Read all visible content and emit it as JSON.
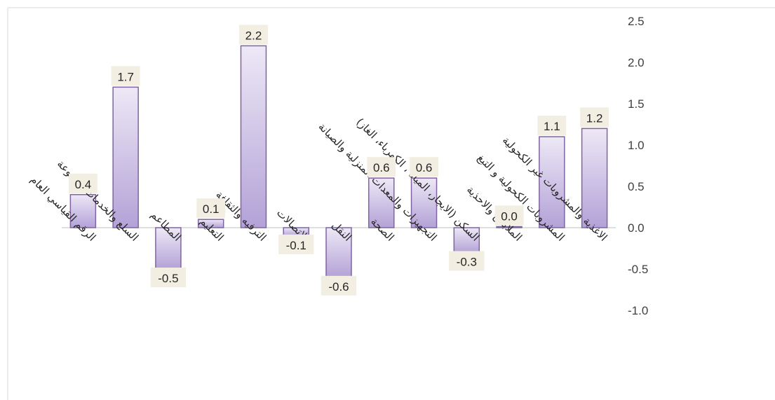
{
  "chart_data": {
    "type": "bar",
    "categories": [
      "الرقم القياسي العام",
      "السلع والخدمات المتنوعة",
      "المطاعم",
      "التعليم",
      "الترفيه والثقافة",
      "الاتصالات",
      "النقل",
      "الصحة",
      "التجهيزات والمعدات المنزلية والصيانة",
      "السكن (الايجار، المياه ، الكهرباء، الغاز)",
      "الملابس والاحذية",
      "المشروبات الكحولية و التبغ",
      "الاغذية والمشروبات غير الكحولية"
    ],
    "values": [
      0.4,
      1.7,
      -0.5,
      0.1,
      2.2,
      -0.1,
      -0.6,
      0.6,
      0.6,
      -0.3,
      0.0,
      1.1,
      1.2
    ],
    "value_labels": [
      "0.4",
      "1.7",
      "-0.5",
      "0.1",
      "2.2",
      "-0.1",
      "-0.6",
      "0.6",
      "0.6",
      "-0.3",
      "0.0",
      "1.1",
      "1.2"
    ],
    "ylim": [
      -1.0,
      2.5
    ],
    "yticks": [
      "2.5",
      "2.0",
      "1.5",
      "1.0",
      "0.5",
      "0.0",
      "-0.5",
      "-1.0"
    ],
    "ytick_values": [
      2.5,
      2.0,
      1.5,
      1.0,
      0.5,
      0.0,
      -0.5,
      -1.0
    ],
    "y_axis_position": "right",
    "grid": false,
    "legend": "none",
    "colors": {
      "bar_fill_top": "#ede8f6",
      "bar_fill_bottom": "#b3a2d7",
      "bar_stroke": "#8064a2",
      "label_background": "#f2eee1"
    }
  }
}
